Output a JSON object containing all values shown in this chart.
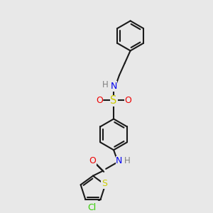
{
  "bg_color": "#e8e8e8",
  "bond_color": "#1a1a1a",
  "N_color": "#0000ee",
  "O_color": "#ee0000",
  "S_color": "#cccc00",
  "Cl_color": "#33cc00",
  "H_color": "#808080",
  "figsize": [
    3.0,
    3.0
  ],
  "dpi": 100,
  "xlim": [
    0,
    10
  ],
  "ylim": [
    0,
    10
  ]
}
